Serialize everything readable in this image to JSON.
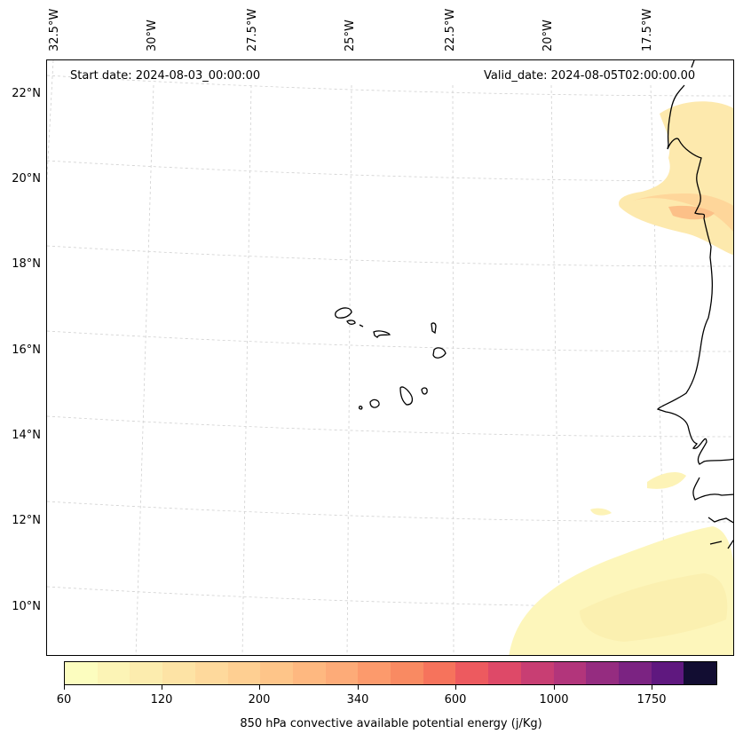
{
  "header": {
    "start_date": "Start date: 2024-08-03_00:00:00",
    "valid_date": "Valid_date: 2024-08-05T02:00:00.00"
  },
  "axes": {
    "lat_labels": [
      "22°N",
      "20°N",
      "18°N",
      "16°N",
      "14°N",
      "12°N",
      "10°N"
    ],
    "lon_labels": [
      "32.5°W",
      "30°W",
      "27.5°W",
      "25°W",
      "22.5°W",
      "20°W",
      "17.5°W"
    ]
  },
  "colorbar": {
    "title": "850 hPa convective available potential energy (j/Kg)",
    "tick_labels": [
      "60",
      "120",
      "200",
      "340",
      "600",
      "1000",
      "1750"
    ],
    "colors": [
      "#fcfdbf",
      "#fcf4b6",
      "#fcecae",
      "#fde3a5",
      "#fed99c",
      "#fecf92",
      "#fec589",
      "#feb880",
      "#fdab78",
      "#fc9a6c",
      "#f98a62",
      "#f6735c",
      "#ed5a5f",
      "#de4968",
      "#c83e73",
      "#b2357b",
      "#952c80",
      "#7b2382",
      "#5f187f",
      "#120d32"
    ]
  },
  "map": {
    "region": "Cape Verde and West African coast",
    "projection": "lat/lon grid with curved gridlines",
    "field": "850 hPa CAPE",
    "coastline_color": "#000000",
    "grid": true
  }
}
